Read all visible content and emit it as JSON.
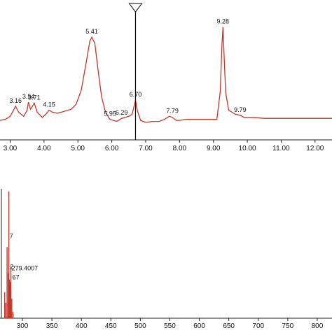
{
  "chart_data": [
    {
      "type": "line",
      "title": "",
      "xlabel": "",
      "ylabel": "",
      "xlim": [
        2.7,
        12.5
      ],
      "ylim": [
        0,
        1.0
      ],
      "x_ticks": [
        "3.00",
        "4.00",
        "5.00",
        "6.00",
        "7.00",
        "8.00",
        "9.00",
        "10.00",
        "11.00",
        "12.00"
      ],
      "line_color": "#c0392b",
      "series": [
        {
          "x": [
            2.7,
            2.85,
            3.0,
            3.1,
            3.16,
            3.25,
            3.4,
            3.5,
            3.54,
            3.6,
            3.66,
            3.71,
            3.8,
            3.95,
            4.05,
            4.15,
            4.25,
            4.4,
            4.6,
            4.8,
            4.95,
            5.1,
            5.25,
            5.35,
            5.41,
            5.5,
            5.6,
            5.7,
            5.8,
            5.9,
            5.95,
            6.05,
            6.15,
            6.2,
            6.29,
            6.4,
            6.5,
            6.6,
            6.65,
            6.7,
            6.75,
            6.85,
            7.0,
            7.2,
            7.4,
            7.55,
            7.7,
            7.79,
            7.9,
            8.0,
            8.2,
            8.5,
            8.8,
            9.1,
            9.2,
            9.25,
            9.28,
            9.31,
            9.36,
            9.45,
            9.55,
            9.65,
            9.79,
            9.9,
            10.1,
            10.5,
            11.0,
            11.5,
            12.0,
            12.5
          ],
          "y": [
            0.02,
            0.03,
            0.06,
            0.12,
            0.16,
            0.1,
            0.06,
            0.12,
            0.2,
            0.13,
            0.16,
            0.19,
            0.1,
            0.05,
            0.08,
            0.12,
            0.1,
            0.09,
            0.11,
            0.13,
            0.18,
            0.32,
            0.6,
            0.8,
            0.84,
            0.78,
            0.5,
            0.25,
            0.12,
            0.05,
            0.03,
            0.02,
            0.01,
            0.02,
            0.04,
            0.05,
            0.06,
            0.08,
            0.15,
            0.22,
            0.12,
            0.02,
            0.0,
            0.01,
            0.01,
            0.03,
            0.06,
            0.05,
            0.02,
            0.02,
            0.03,
            0.03,
            0.03,
            0.03,
            0.3,
            0.75,
            0.94,
            0.7,
            0.3,
            0.12,
            0.1,
            0.08,
            0.07,
            0.05,
            0.05,
            0.04,
            0.04,
            0.04,
            0.04,
            0.04
          ]
        }
      ],
      "peak_labels": [
        {
          "x": 3.16,
          "y": 0.16,
          "text": "3.16"
        },
        {
          "x": 3.54,
          "y": 0.2,
          "text": "3.54"
        },
        {
          "x": 3.71,
          "y": 0.19,
          "text": "3.71"
        },
        {
          "x": 4.15,
          "y": 0.12,
          "text": "4.15"
        },
        {
          "x": 5.41,
          "y": 0.84,
          "text": "5.41"
        },
        {
          "x": 5.95,
          "y": 0.03,
          "text": "5.95"
        },
        {
          "x": 6.29,
          "y": 0.04,
          "text": "6.29"
        },
        {
          "x": 6.7,
          "y": 0.22,
          "text": "6.70"
        },
        {
          "x": 7.79,
          "y": 0.06,
          "text": "7.79"
        },
        {
          "x": 9.28,
          "y": 0.94,
          "text": "9.28"
        },
        {
          "x": 9.79,
          "y": 0.07,
          "text": "9.79"
        }
      ],
      "marker_x": 6.7
    },
    {
      "type": "bar",
      "title": "",
      "xlabel": "",
      "ylabel": "",
      "xlim": [
        262,
        825
      ],
      "ylim": [
        0,
        1.0
      ],
      "x_ticks": [
        "300",
        "350",
        "400",
        "450",
        "500",
        "550",
        "600",
        "650",
        "700",
        "750",
        "800"
      ],
      "bar_color": "#c0392b",
      "peaks": [
        {
          "x": 270.0,
          "y": 0.2
        },
        {
          "x": 272.0,
          "y": 0.12
        },
        {
          "x": 274.0,
          "y": 0.55
        },
        {
          "x": 276.0,
          "y": 0.35
        },
        {
          "x": 277.0,
          "y": 0.98
        },
        {
          "x": 278.0,
          "y": 0.3
        },
        {
          "x": 279.4,
          "y": 0.28
        },
        {
          "x": 280.5,
          "y": 0.4
        },
        {
          "x": 282.0,
          "y": 0.15
        },
        {
          "x": 284.0,
          "y": 0.05
        }
      ],
      "peak_labels": [
        {
          "x": 276.0,
          "y": 0.62,
          "text": "7"
        },
        {
          "x": 276.5,
          "y": 0.38,
          "text": "2"
        },
        {
          "x": 279.4,
          "y": 0.37,
          "text": "279.4007"
        },
        {
          "x": 280.5,
          "y": 0.3,
          "text": "67"
        }
      ]
    }
  ]
}
